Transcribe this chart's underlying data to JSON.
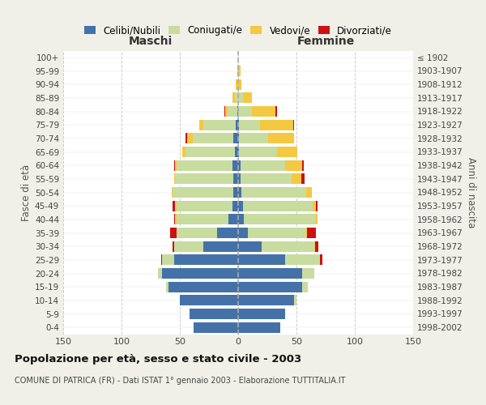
{
  "age_groups": [
    "0-4",
    "5-9",
    "10-14",
    "15-19",
    "20-24",
    "25-29",
    "30-34",
    "35-39",
    "40-44",
    "45-49",
    "50-54",
    "55-59",
    "60-64",
    "65-69",
    "70-74",
    "75-79",
    "80-84",
    "85-89",
    "90-94",
    "95-99",
    "100+"
  ],
  "birth_years": [
    "1998-2002",
    "1993-1997",
    "1988-1992",
    "1983-1987",
    "1978-1982",
    "1973-1977",
    "1968-1972",
    "1963-1967",
    "1958-1962",
    "1953-1957",
    "1948-1952",
    "1943-1947",
    "1938-1942",
    "1933-1937",
    "1928-1932",
    "1923-1927",
    "1918-1922",
    "1913-1917",
    "1908-1912",
    "1903-1907",
    "≤ 1902"
  ],
  "males": {
    "celibe": [
      38,
      42,
      50,
      60,
      65,
      55,
      30,
      18,
      8,
      5,
      4,
      4,
      5,
      3,
      4,
      2,
      1,
      0,
      0,
      0,
      0
    ],
    "coniugato": [
      0,
      0,
      0,
      2,
      4,
      10,
      25,
      35,
      45,
      48,
      52,
      50,
      48,
      42,
      35,
      28,
      8,
      3,
      1,
      0,
      0
    ],
    "vedovo": [
      0,
      0,
      0,
      0,
      0,
      0,
      0,
      0,
      1,
      1,
      1,
      1,
      1,
      3,
      5,
      3,
      2,
      2,
      1,
      1,
      0
    ],
    "divorziato": [
      0,
      0,
      0,
      0,
      0,
      1,
      1,
      5,
      1,
      2,
      0,
      0,
      1,
      0,
      1,
      0,
      1,
      0,
      0,
      0,
      0
    ]
  },
  "females": {
    "nubile": [
      36,
      40,
      48,
      55,
      55,
      40,
      20,
      8,
      5,
      4,
      3,
      2,
      2,
      1,
      1,
      1,
      0,
      0,
      0,
      0,
      0
    ],
    "coniugata": [
      0,
      0,
      2,
      5,
      10,
      30,
      45,
      50,
      62,
      60,
      55,
      44,
      38,
      32,
      25,
      18,
      12,
      4,
      0,
      0,
      0
    ],
    "vedova": [
      0,
      0,
      0,
      0,
      0,
      0,
      1,
      1,
      1,
      3,
      5,
      8,
      15,
      18,
      22,
      28,
      20,
      8,
      3,
      2,
      0
    ],
    "divorziata": [
      0,
      0,
      0,
      0,
      0,
      2,
      3,
      8,
      0,
      1,
      0,
      3,
      1,
      0,
      0,
      1,
      1,
      0,
      0,
      0,
      0
    ]
  },
  "colors": {
    "celibe": "#4472a8",
    "coniugato": "#c8dca0",
    "vedovo": "#f5c842",
    "divorziato": "#cc1111"
  },
  "legend_labels": [
    "Celibi/Nubili",
    "Coniugati/e",
    "Vedovi/e",
    "Divorziati/e"
  ],
  "xlim": 150,
  "title": "Popolazione per età, sesso e stato civile - 2003",
  "subtitle": "COMUNE DI PATRICA (FR) - Dati ISTAT 1° gennaio 2003 - Elaborazione TUTTITALIA.IT",
  "ylabel_left": "Fasce di età",
  "ylabel_right": "Anni di nascita",
  "xlabel_left": "Maschi",
  "xlabel_right": "Femmine",
  "bg_color": "#f0f0e8",
  "plot_bg": "#ffffff"
}
